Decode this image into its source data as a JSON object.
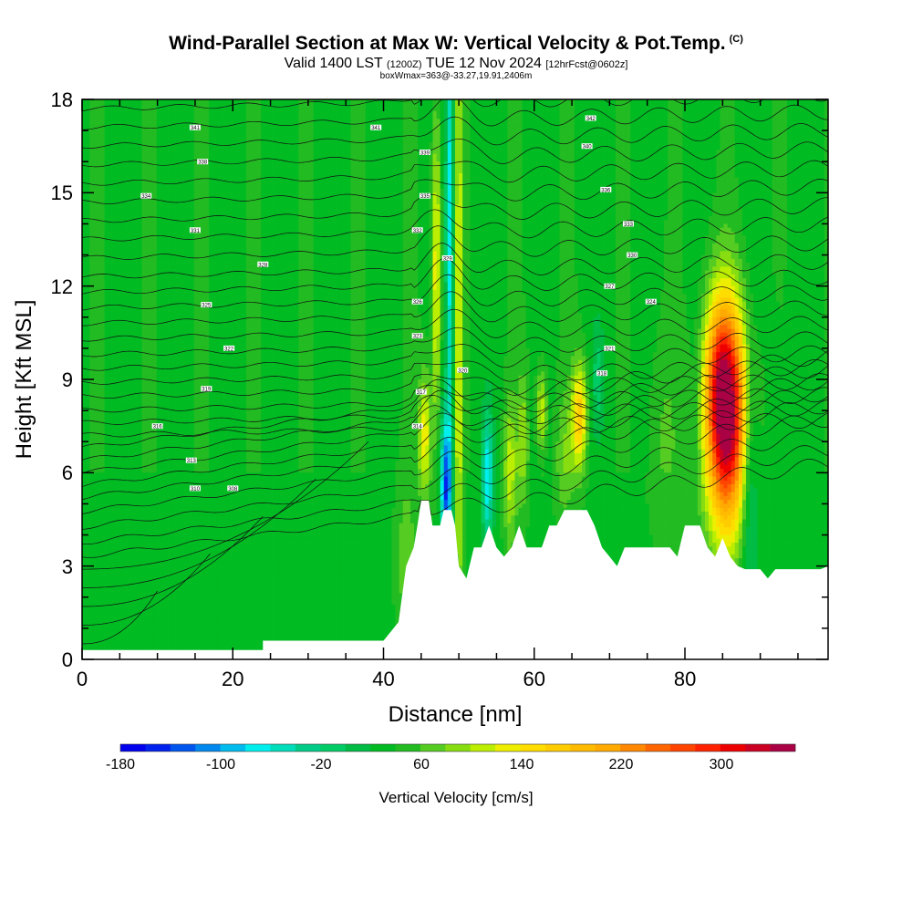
{
  "header": {
    "title": "Wind-Parallel Section at Max W: Vertical Velocity & Pot.Temp.",
    "copyright": "(C)",
    "valid_prefix": "Valid 1400 LST",
    "valid_z": "(1200Z)",
    "valid_date": "TUE 12 Nov 2024",
    "forecast": "[12hrFcst@0602z]",
    "box_info": "boxWmax=363@-33.27,19.91,2406m"
  },
  "chart_data": {
    "type": "heatmap",
    "title": "Wind-Parallel Section at Max W: Vertical Velocity & Pot.Temp.",
    "xlabel": "Distance [nm]",
    "ylabel": "Height [Kft MSL]",
    "xlim": [
      0,
      99
    ],
    "ylim": [
      0,
      18
    ],
    "x_ticks": [
      0,
      20,
      40,
      60,
      80
    ],
    "y_ticks": [
      0,
      3,
      6,
      9,
      12,
      15,
      18
    ],
    "background_w": 35,
    "terrain": [
      [
        0,
        0.3
      ],
      [
        15,
        0.3
      ],
      [
        24,
        0.3
      ],
      [
        24,
        0.6
      ],
      [
        40,
        0.6
      ],
      [
        42,
        1.2
      ],
      [
        43,
        3.0
      ],
      [
        44,
        3.6
      ],
      [
        44.5,
        4.3
      ],
      [
        45,
        5.1
      ],
      [
        46,
        5.1
      ],
      [
        46.5,
        4.3
      ],
      [
        47.5,
        4.3
      ],
      [
        48,
        4.8
      ],
      [
        49,
        4.8
      ],
      [
        49.5,
        4.3
      ],
      [
        50,
        3.0
      ],
      [
        51,
        2.6
      ],
      [
        52,
        3.6
      ],
      [
        53,
        3.6
      ],
      [
        54,
        4.3
      ],
      [
        55,
        3.6
      ],
      [
        56,
        3.3
      ],
      [
        57,
        3.6
      ],
      [
        58,
        4.3
      ],
      [
        59,
        3.6
      ],
      [
        60,
        3.6
      ],
      [
        61,
        3.6
      ],
      [
        62,
        4.3
      ],
      [
        63,
        4.3
      ],
      [
        64,
        4.8
      ],
      [
        67,
        4.8
      ],
      [
        68,
        4.3
      ],
      [
        69,
        3.6
      ],
      [
        70,
        3.3
      ],
      [
        71,
        3.0
      ],
      [
        72,
        3.6
      ],
      [
        73,
        3.6
      ],
      [
        78,
        3.6
      ],
      [
        79,
        3.3
      ],
      [
        80,
        4.3
      ],
      [
        82,
        4.3
      ],
      [
        83,
        3.6
      ],
      [
        84,
        3.3
      ],
      [
        85,
        3.9
      ],
      [
        86,
        3.3
      ],
      [
        87,
        3.0
      ],
      [
        88,
        2.9
      ],
      [
        90,
        2.9
      ],
      [
        91,
        2.6
      ],
      [
        92,
        2.9
      ],
      [
        98,
        2.9
      ],
      [
        99,
        3.0
      ]
    ],
    "updrafts": [
      {
        "x": 85.5,
        "y": 7.8,
        "sx": 2.0,
        "sy": 2.5,
        "w": 330
      },
      {
        "x": 84.5,
        "y": 9.5,
        "sx": 1.3,
        "sy": 1.6,
        "w": 60
      },
      {
        "x": 66,
        "y": 7.8,
        "sx": 0.7,
        "sy": 1.2,
        "w": 135
      },
      {
        "x": 64,
        "y": 6.5,
        "sx": 0.9,
        "sy": 1.5,
        "w": 40
      },
      {
        "x": 61,
        "y": 8.0,
        "sx": 0.5,
        "sy": 1.0,
        "w": 80
      },
      {
        "x": 58.5,
        "y": 7.0,
        "sx": 0.5,
        "sy": 1.5,
        "w": 60
      },
      {
        "x": 56.8,
        "y": 6.0,
        "sx": 0.6,
        "sy": 1.6,
        "w": 75
      },
      {
        "x": 50,
        "y": 10.5,
        "sx": 0.4,
        "sy": 7.0,
        "w": 90
      },
      {
        "x": 47,
        "y": 12.5,
        "sx": 0.4,
        "sy": 3.5,
        "w": 110
      },
      {
        "x": 45.5,
        "y": 7.2,
        "sx": 0.6,
        "sy": 1.4,
        "w": 100
      },
      {
        "x": 43,
        "y": 3.3,
        "sx": 1.0,
        "sy": 2.0,
        "w": 35
      },
      {
        "x": 77,
        "y": 7.0,
        "sx": 1.6,
        "sy": 2.5,
        "w": 25
      }
    ],
    "downdrafts": [
      {
        "x": 48.8,
        "y": 14.0,
        "sx": 0.35,
        "sy": 5.0,
        "w": -110
      },
      {
        "x": 48.3,
        "y": 5.5,
        "sx": 0.5,
        "sy": 1.6,
        "w": -170
      },
      {
        "x": 53.8,
        "y": 5.8,
        "sx": 0.5,
        "sy": 1.4,
        "w": -110
      },
      {
        "x": 88.6,
        "y": 6.0,
        "sx": 0.8,
        "sy": 3.0,
        "w": -70
      },
      {
        "x": 68.5,
        "y": 9.0,
        "sx": 0.6,
        "sy": 1.2,
        "w": -40
      },
      {
        "x": 81.5,
        "y": 8.5,
        "sx": 0.6,
        "sy": 2.0,
        "w": -20
      },
      {
        "x": 92,
        "y": 7.0,
        "sx": 1.2,
        "sy": 3.0,
        "w": -10
      }
    ],
    "theta_contours": {
      "surface_heights": [
        3.3,
        3.75,
        4.25,
        4.75,
        5.2,
        5.6,
        6.0,
        6.4,
        6.8,
        7.2,
        7.6,
        8.0,
        8.45,
        8.9,
        9.35,
        9.8,
        10.3,
        10.8,
        11.3,
        11.8,
        12.3,
        12.9,
        13.5,
        14.1,
        14.7,
        15.3,
        15.9,
        16.5,
        17.1,
        17.7
      ],
      "cold_pool_heights": [
        0.5,
        1.1,
        1.7,
        2.3,
        2.9
      ],
      "labels": [
        {
          "x": 15,
          "y": 17.1,
          "text": "341"
        },
        {
          "x": 16,
          "y": 16.0,
          "text": "338"
        },
        {
          "x": 8.5,
          "y": 14.9,
          "text": "334"
        },
        {
          "x": 15,
          "y": 13.8,
          "text": "331"
        },
        {
          "x": 24,
          "y": 12.7,
          "text": "328"
        },
        {
          "x": 16.5,
          "y": 11.4,
          "text": "325"
        },
        {
          "x": 19.5,
          "y": 10.0,
          "text": "322"
        },
        {
          "x": 16.5,
          "y": 8.7,
          "text": "319"
        },
        {
          "x": 10,
          "y": 7.5,
          "text": "316"
        },
        {
          "x": 14.5,
          "y": 6.4,
          "text": "313"
        },
        {
          "x": 15,
          "y": 5.5,
          "text": "310"
        },
        {
          "x": 20,
          "y": 5.5,
          "text": "308"
        },
        {
          "x": 39,
          "y": 17.1,
          "text": "341"
        },
        {
          "x": 45.5,
          "y": 16.3,
          "text": "339"
        },
        {
          "x": 45.5,
          "y": 14.9,
          "text": "335"
        },
        {
          "x": 44.5,
          "y": 13.8,
          "text": "332"
        },
        {
          "x": 48.5,
          "y": 12.9,
          "text": "329"
        },
        {
          "x": 44.5,
          "y": 11.5,
          "text": "326"
        },
        {
          "x": 44.5,
          "y": 10.4,
          "text": "323"
        },
        {
          "x": 50.5,
          "y": 9.3,
          "text": "320"
        },
        {
          "x": 45,
          "y": 8.6,
          "text": "317"
        },
        {
          "x": 44.5,
          "y": 7.5,
          "text": "314"
        },
        {
          "x": 67.5,
          "y": 17.4,
          "text": "342"
        },
        {
          "x": 67,
          "y": 16.5,
          "text": "340"
        },
        {
          "x": 69.5,
          "y": 15.1,
          "text": "336"
        },
        {
          "x": 72.5,
          "y": 14.0,
          "text": "333"
        },
        {
          "x": 73,
          "y": 13.0,
          "text": "330"
        },
        {
          "x": 70,
          "y": 12.0,
          "text": "327"
        },
        {
          "x": 75.5,
          "y": 11.5,
          "text": "324"
        },
        {
          "x": 70,
          "y": 10.0,
          "text": "321"
        },
        {
          "x": 69,
          "y": 9.2,
          "text": "318"
        }
      ]
    },
    "colorbar": {
      "title": "Vertical Velocity [cm/s]",
      "min": -180,
      "step": 20,
      "tick_labels": [
        "-180",
        "-100",
        "-20",
        "60",
        "140",
        "220",
        "300"
      ],
      "colors": [
        "#0000ee",
        "#0022ee",
        "#0055ee",
        "#0088ee",
        "#00bbee",
        "#00eeee",
        "#00ddbb",
        "#00cc88",
        "#00cc66",
        "#00bb44",
        "#00bb22",
        "#22bb22",
        "#55cc22",
        "#88dd11",
        "#bbee00",
        "#eeee00",
        "#ffdd00",
        "#ffcc00",
        "#ffbb00",
        "#ffaa00",
        "#ff8800",
        "#ff6600",
        "#ff4400",
        "#ff2200",
        "#ee0000",
        "#cc0022",
        "#aa0044"
      ]
    }
  }
}
